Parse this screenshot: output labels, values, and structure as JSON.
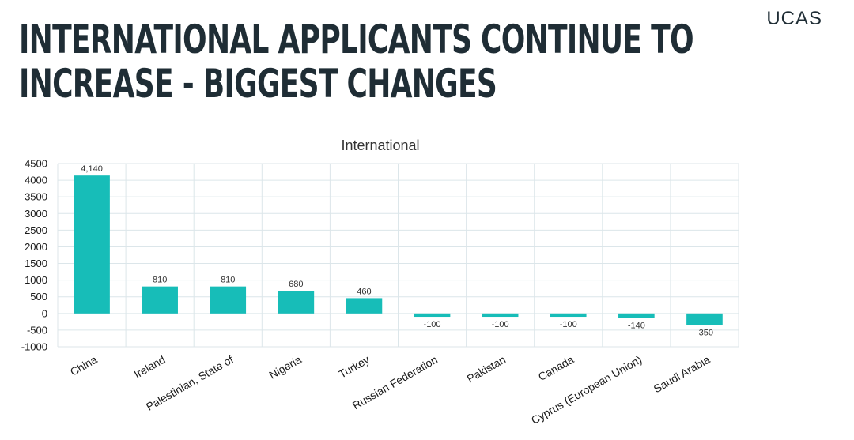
{
  "slide": {
    "title_line1": "INTERNATIONAL APPLICANTS CONTINUE TO",
    "title_line2": "INCREASE - BIGGEST CHANGES",
    "logo": "UCAS"
  },
  "colors": {
    "bar": "#17bdb8",
    "grid": "#dce6ea",
    "title": "#1f2d35"
  },
  "chart_data": {
    "type": "bar",
    "title": "International",
    "categories": [
      "China",
      "Ireland",
      "Palestinian, State of",
      "Nigeria",
      "Turkey",
      "Russian Federation",
      "Pakistan",
      "Canada",
      "Cyprus (European Union)",
      "Saudi Arabia"
    ],
    "values": [
      4140,
      810,
      810,
      680,
      460,
      -100,
      -100,
      -100,
      -140,
      -350
    ],
    "data_labels": [
      "4,140",
      "810",
      "810",
      "680",
      "460",
      "-100",
      "-100",
      "-100",
      "-140",
      "-350"
    ],
    "ylim": [
      -1000,
      4500
    ],
    "yticks": [
      4500,
      4000,
      3500,
      3000,
      2500,
      2000,
      1500,
      1000,
      500,
      0,
      -500,
      -1000
    ],
    "grid": true,
    "legend": "none"
  }
}
